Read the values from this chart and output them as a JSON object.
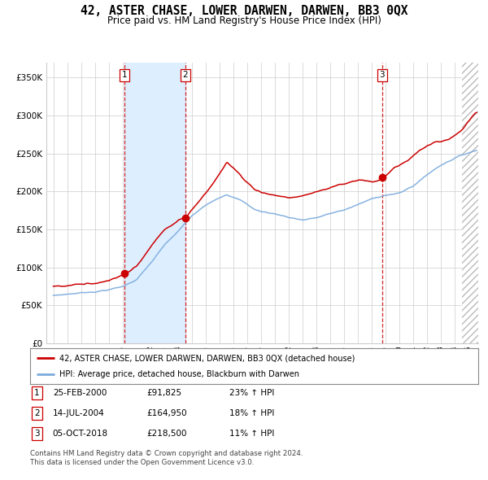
{
  "title": "42, ASTER CHASE, LOWER DARWEN, DARWEN, BB3 0QX",
  "subtitle": "Price paid vs. HM Land Registry's House Price Index (HPI)",
  "ylim": [
    0,
    370000
  ],
  "yticks": [
    0,
    50000,
    100000,
    150000,
    200000,
    250000,
    300000,
    350000
  ],
  "ytick_labels": [
    "£0",
    "£50K",
    "£100K",
    "£150K",
    "£200K",
    "£250K",
    "£300K",
    "£350K"
  ],
  "xlim_start": 1994.5,
  "xlim_end": 2025.7,
  "sale_dates": [
    2000.12,
    2004.54,
    2018.76
  ],
  "sale_prices": [
    91825,
    164950,
    218500
  ],
  "sale_labels": [
    "1",
    "2",
    "3"
  ],
  "vline_color": "#cc0000",
  "dot_color": "#cc0000",
  "red_line_color": "#cc0000",
  "blue_line_color": "#7aaadd",
  "shading_color": "#ddeeff",
  "background_color": "#ffffff",
  "grid_color": "#cccccc",
  "legend_line1": "42, ASTER CHASE, LOWER DARWEN, DARWEN, BB3 0QX (detached house)",
  "legend_line2": "HPI: Average price, detached house, Blackburn with Darwen",
  "table_rows": [
    [
      "1",
      "25-FEB-2000",
      "£91,825",
      "23% ↑ HPI"
    ],
    [
      "2",
      "14-JUL-2004",
      "£164,950",
      "18% ↑ HPI"
    ],
    [
      "3",
      "05-OCT-2018",
      "£218,500",
      "11% ↑ HPI"
    ]
  ],
  "footer": "Contains HM Land Registry data © Crown copyright and database right 2024.\nThis data is licensed under the Open Government Licence v3.0."
}
